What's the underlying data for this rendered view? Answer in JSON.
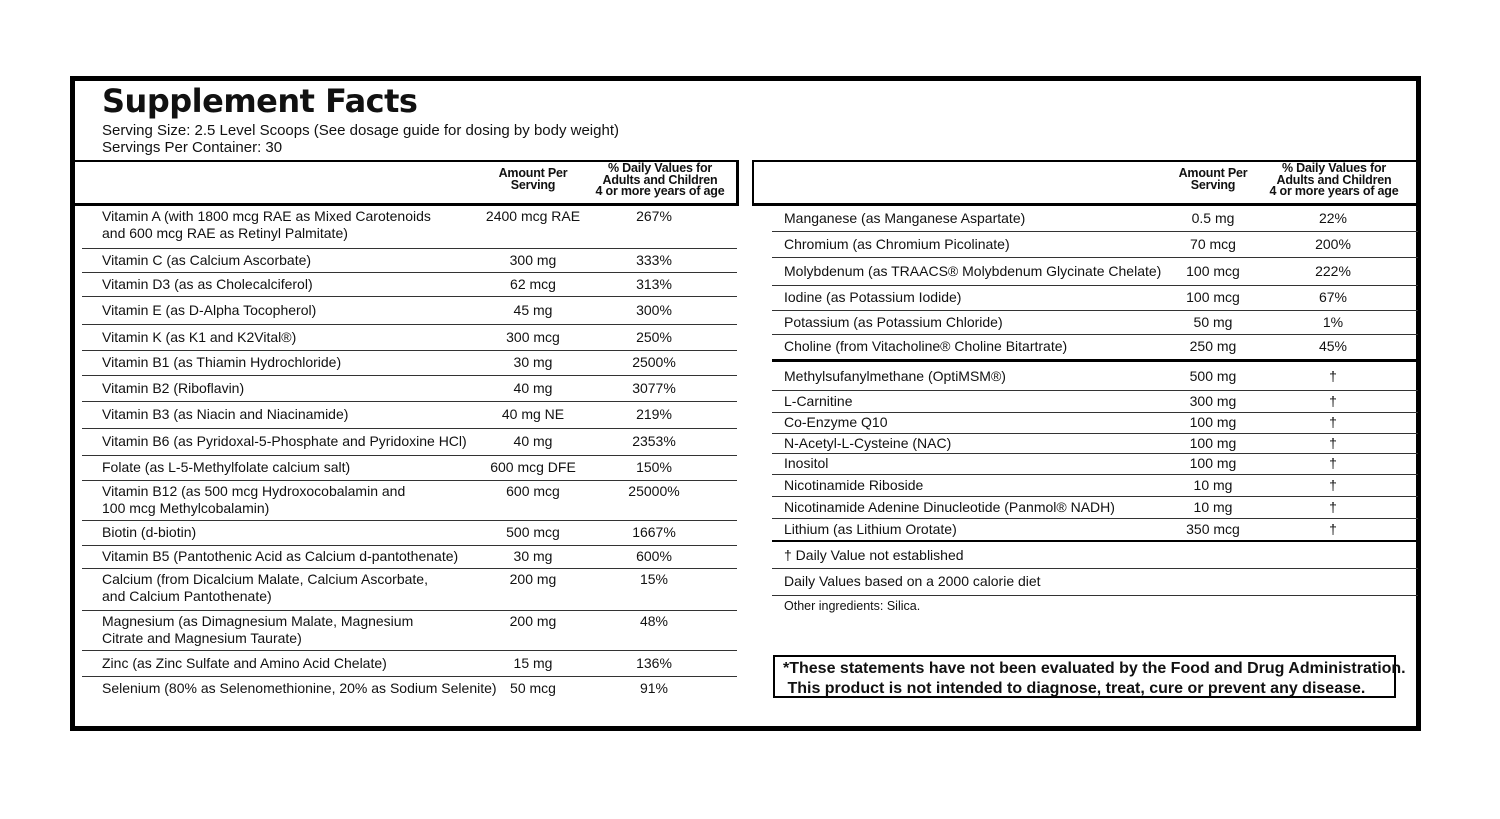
{
  "title": "Supplement Facts",
  "serving_size": "Serving Size: 2.5 Level Scoops (See dosage guide for dosing by body weight)",
  "servings_per_container": "Servings Per Container: 30",
  "left_table": {
    "headers": [
      "Amount Per\nServing",
      "% Daily Values for\nAdults and Children\n4 or more years of age"
    ],
    "rows": [
      [
        "Vitamin A (with 1800 mcg RAE as Mixed Carotenoids\nand 600 mcg RAE as Retinyl Palmitate)",
        "2400 mcg RAE",
        "267%"
      ],
      [
        "Vitamin C (as Calcium Ascorbate)",
        "300 mg",
        "333%"
      ],
      [
        "Vitamin D3 (as as Cholecalciferol)",
        "62 mcg",
        "313%"
      ],
      [
        "Vitamin E (as D-Alpha Tocopherol)",
        "45 mg",
        "300%"
      ],
      [
        "Vitamin K (as K1 and K2Vital®)",
        "300 mcg",
        "250%"
      ],
      [
        "Vitamin B1 (as Thiamin Hydrochloride)",
        "30 mg",
        "2500%"
      ],
      [
        "Vitamin B2 (Riboflavin)",
        "40 mg",
        "3077%"
      ],
      [
        "Vitamin B3 (as Niacin and Niacinamide)",
        "40 mg NE",
        "219%"
      ],
      [
        "Vitamin B6 (as Pyridoxal-5-Phosphate and Pyridoxine HCl)",
        "40 mg",
        "2353%"
      ],
      [
        "Folate (as L-5-Methylfolate calcium salt)",
        "600 mcg DFE",
        "150%"
      ],
      [
        "Vitamin B12 (as 500 mcg Hydroxocobalamin and\n100 mcg Methylcobalamin)",
        "600 mcg",
        "25000%"
      ],
      [
        "Biotin (d-biotin)",
        "500 mcg",
        "1667%"
      ],
      [
        "Vitamin B5 (Pantothenic Acid as Calcium d-pantothenate)",
        "30 mg",
        "600%"
      ],
      [
        "Calcium (from Dicalcium Malate, Calcium Ascorbate,\nand Calcium Pantothenate)",
        "200 mg",
        "15%"
      ],
      [
        "Magnesium (as Dimagnesium Malate, Magnesium\nCitrate and Magnesium Taurate)",
        "200 mg",
        "48%"
      ],
      [
        "Zinc (as Zinc Sulfate and Amino Acid Chelate)",
        "15 mg",
        "136%"
      ],
      [
        "Selenium (80% as Selenomethionine, 20% as Sodium Selenite)",
        "50 mcg",
        "91%"
      ]
    ]
  },
  "right_table": {
    "headers": [
      "Amount Per\nServing",
      "% Daily Values for\nAdults and Children\n4 or more years of age"
    ],
    "rows": [
      [
        "Manganese (as Manganese Aspartate)",
        "0.5 mg",
        "22%"
      ],
      [
        "Chromium (as Chromium Picolinate)",
        "70 mcg",
        "200%"
      ],
      [
        "Molybdenum (as TRAACS® Molybdenum Glycinate Chelate)",
        "100 mcg",
        "222%"
      ],
      [
        "Iodine (as Potassium Iodide)",
        "100 mcg",
        "67%"
      ],
      [
        "Potassium (as Potassium Chloride)",
        "50 mg",
        "1%"
      ],
      [
        "Choline (from Vitacholine® Choline Bitartrate)",
        "250 mg",
        "45%"
      ]
    ],
    "other_rows": [
      [
        "Methylsufanylmethane (OptiMSM®)",
        "500 mg",
        "†"
      ],
      [
        "L-Carnitine",
        "300 mg",
        "†"
      ],
      [
        "Co-Enzyme Q10",
        "100 mg",
        "†"
      ],
      [
        "N-Acetyl-L-Cysteine (NAC)",
        "100 mg",
        "†"
      ],
      [
        "Inositol",
        "100 mg",
        "†"
      ],
      [
        "Nicotinamide Riboside",
        "10 mg",
        "†"
      ],
      [
        "Nicotinamide Adenine Dinucleotide (Panmol® NADH)",
        "10 mg",
        "†"
      ],
      [
        "Lithium (as Lithium Orotate)",
        "350 mcg",
        "†"
      ]
    ]
  },
  "footnotes": [
    "† Daily Value not established",
    "Daily Values based on a 2000 calorie diet"
  ],
  "other_ingredients": "Other ingredients: Silica.",
  "disclaimer": "*These statements have not been evaluated by the Food and Drug Administration.\n This product is not intended to diagnose, treat, cure or prevent any disease."
}
